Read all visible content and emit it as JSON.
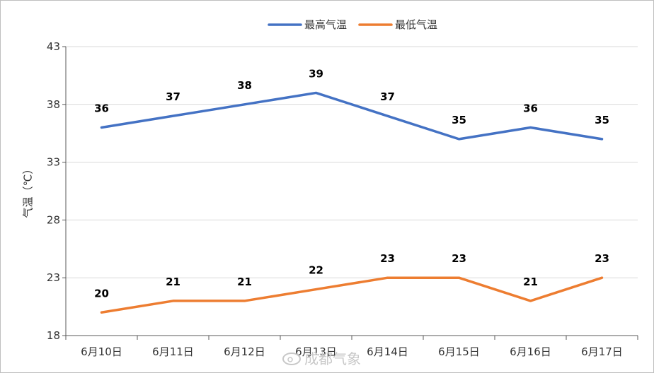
{
  "chart_data": {
    "type": "line",
    "categories": [
      "6月10日",
      "6月11日",
      "6月12日",
      "6月13日",
      "6月14日",
      "6月15日",
      "6月16日",
      "6月17日"
    ],
    "series": [
      {
        "name": "最高气温",
        "color": "#4472c4",
        "values": [
          36,
          37,
          38,
          39,
          37,
          35,
          36,
          35
        ]
      },
      {
        "name": "最低气温",
        "color": "#ed7d31",
        "values": [
          20,
          21,
          21,
          22,
          23,
          23,
          21,
          23
        ]
      }
    ],
    "ylabel": "气温（℃）",
    "ylim": [
      18,
      43
    ],
    "yticks": [
      18,
      23,
      28,
      33,
      38,
      43
    ],
    "grid": true,
    "legend": "top-center"
  },
  "watermark": "成都气象"
}
